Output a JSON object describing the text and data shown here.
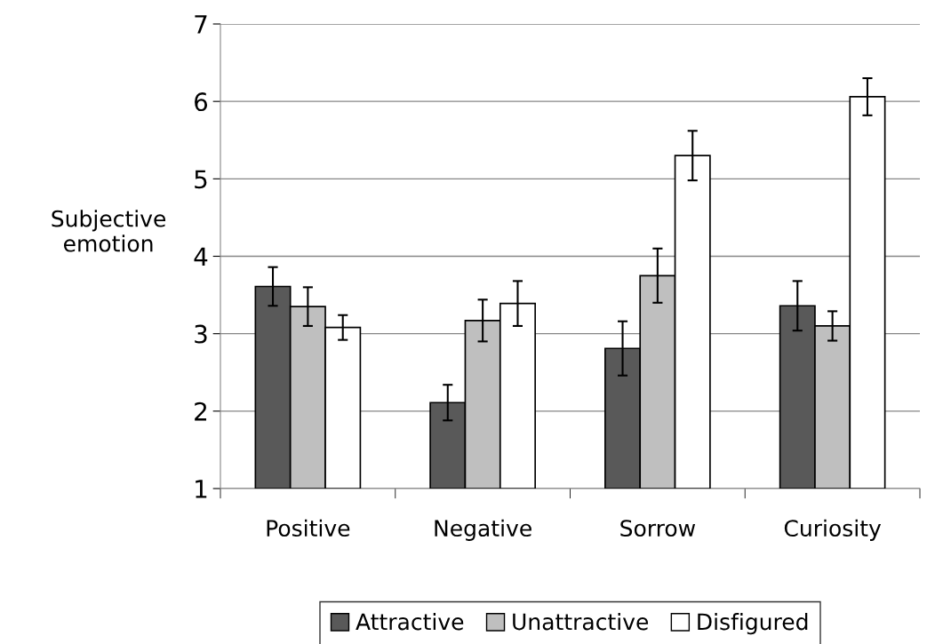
{
  "chart_data": {
    "type": "bar",
    "ylabel": "Subjective\nemotion",
    "categories": [
      "Positive",
      "Negative",
      "Sorrow",
      "Curiosity"
    ],
    "series": [
      {
        "name": "Attractive",
        "color": "#595959",
        "values": [
          3.61,
          2.11,
          2.81,
          3.36
        ],
        "errors": [
          0.25,
          0.23,
          0.35,
          0.32
        ]
      },
      {
        "name": "Unattractive",
        "color": "#bfbfbf",
        "values": [
          3.35,
          3.17,
          3.75,
          3.1
        ],
        "errors": [
          0.25,
          0.27,
          0.35,
          0.19
        ]
      },
      {
        "name": "Disfigured",
        "color": "#ffffff",
        "values": [
          3.08,
          3.39,
          5.3,
          6.06
        ],
        "errors": [
          0.16,
          0.29,
          0.32,
          0.24
        ]
      }
    ],
    "ylim": [
      1,
      7
    ],
    "yticks": [
      1,
      2,
      3,
      4,
      5,
      6,
      7
    ],
    "grid": "y",
    "legend": "bottom"
  }
}
